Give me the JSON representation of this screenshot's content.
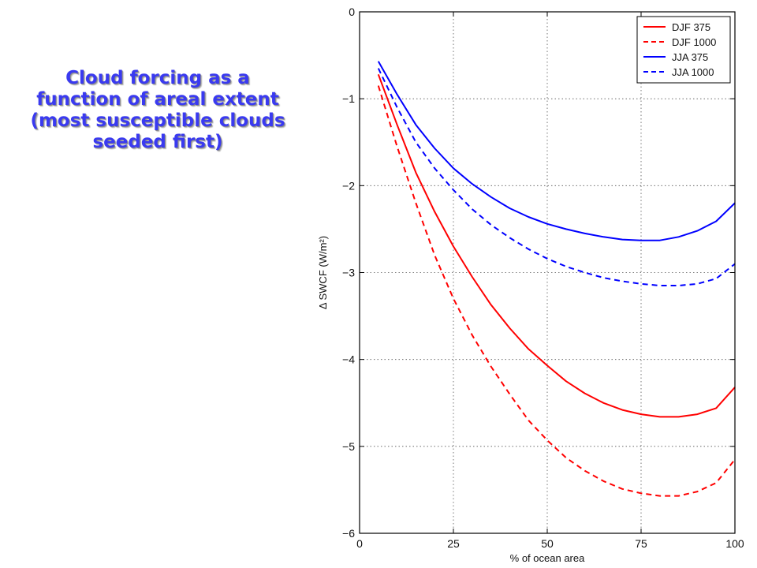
{
  "slide": {
    "title_lines": [
      "Cloud forcing as a",
      "function of areal extent",
      "(most susceptible clouds",
      "seeded first)"
    ]
  },
  "chart_data": {
    "type": "line",
    "title": "",
    "xlabel": "% of ocean area",
    "ylabel": "Δ SWCF (W/m²)",
    "xlim": [
      0,
      100
    ],
    "ylim": [
      -6,
      0
    ],
    "xticks": [
      0,
      25,
      50,
      75,
      100
    ],
    "yticks": [
      0,
      -1,
      -2,
      -3,
      -4,
      -5,
      -6
    ],
    "ytick_labels": [
      "0",
      "−1",
      "−2",
      "−3",
      "−4",
      "−5",
      "−6"
    ],
    "grid": true,
    "legend": "top-right",
    "x": [
      5,
      10,
      15,
      20,
      25,
      30,
      35,
      40,
      45,
      50,
      55,
      60,
      65,
      70,
      75,
      80,
      85,
      90,
      95,
      100
    ],
    "series": [
      {
        "name": "DJF 375",
        "color": "#ff0000",
        "dash": "solid",
        "values": [
          -0.72,
          -1.3,
          -1.85,
          -2.3,
          -2.7,
          -3.05,
          -3.37,
          -3.64,
          -3.88,
          -4.07,
          -4.25,
          -4.39,
          -4.5,
          -4.58,
          -4.63,
          -4.66,
          -4.66,
          -4.63,
          -4.56,
          -4.32
        ]
      },
      {
        "name": "DJF 1000",
        "color": "#ff0000",
        "dash": "dashed",
        "values": [
          -0.85,
          -1.55,
          -2.2,
          -2.8,
          -3.3,
          -3.72,
          -4.08,
          -4.4,
          -4.7,
          -4.93,
          -5.13,
          -5.28,
          -5.4,
          -5.49,
          -5.54,
          -5.57,
          -5.57,
          -5.52,
          -5.42,
          -5.15
        ]
      },
      {
        "name": "JJA 375",
        "color": "#0000ff",
        "dash": "solid",
        "values": [
          -0.57,
          -0.95,
          -1.3,
          -1.57,
          -1.8,
          -1.98,
          -2.13,
          -2.26,
          -2.36,
          -2.44,
          -2.5,
          -2.55,
          -2.59,
          -2.62,
          -2.63,
          -2.63,
          -2.59,
          -2.52,
          -2.41,
          -2.2
        ]
      },
      {
        "name": "JJA 1000",
        "color": "#0000ff",
        "dash": "dashed",
        "values": [
          -0.65,
          -1.1,
          -1.5,
          -1.8,
          -2.05,
          -2.27,
          -2.45,
          -2.6,
          -2.73,
          -2.84,
          -2.93,
          -3.0,
          -3.06,
          -3.1,
          -3.13,
          -3.15,
          -3.15,
          -3.13,
          -3.07,
          -2.9
        ]
      }
    ]
  }
}
